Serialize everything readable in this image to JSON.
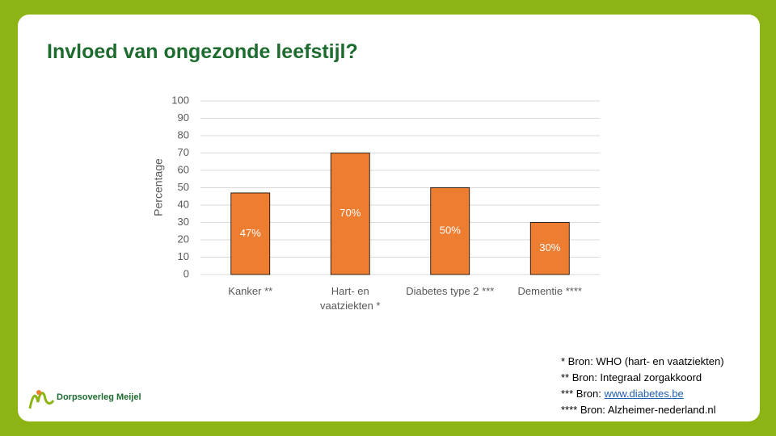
{
  "title": "Invloed van ongezonde leefstijl?",
  "chart_data": {
    "type": "bar",
    "categories": [
      "Kanker **",
      "Hart- en vaatziekten *",
      "Diabetes type 2 ***",
      "Dementie ****"
    ],
    "values": [
      47,
      70,
      50,
      30
    ],
    "value_labels": [
      "47%",
      "70%",
      "50%",
      "30%"
    ],
    "color": "#ed7d31",
    "y_label": "Percentage",
    "ylim": [
      0,
      100
    ],
    "yticks": [
      0,
      10,
      20,
      30,
      40,
      50,
      60,
      70,
      80,
      90,
      100
    ],
    "grid": true
  },
  "footnotes": [
    {
      "text": "* Bron: WHO (hart- en vaatziekten)"
    },
    {
      "text": "** Bron: Integraal zorgakkoord"
    },
    {
      "text": "*** Bron: ",
      "link": "www.diabetes.be"
    },
    {
      "text": "**** Bron: Alzheimer-nederland.nl"
    }
  ],
  "logo": {
    "name": "Dorpsoverleg Meijel"
  }
}
